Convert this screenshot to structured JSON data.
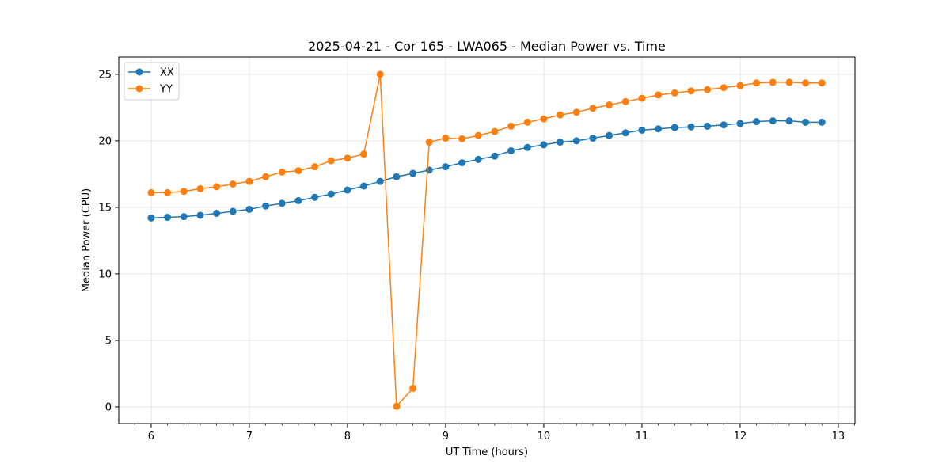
{
  "chart_data": {
    "type": "line",
    "title": "2025-04-21 - Cor 165 - LWA065 - Median Power vs. Time",
    "xlabel": "UT Time (hours)",
    "ylabel": "Median Power (CPU)",
    "xlim": [
      5.67,
      13.17
    ],
    "ylim": [
      -1.25,
      26.3
    ],
    "xticks": [
      6,
      7,
      8,
      9,
      10,
      11,
      12,
      13
    ],
    "yticks": [
      0,
      5,
      10,
      15,
      20,
      25
    ],
    "grid": true,
    "legend_position": "top-left",
    "x": [
      6.0,
      6.1667,
      6.3333,
      6.5,
      6.6667,
      6.8333,
      7.0,
      7.1667,
      7.3333,
      7.5,
      7.6667,
      7.8333,
      8.0,
      8.1667,
      8.3333,
      8.5,
      8.6667,
      8.8333,
      9.0,
      9.1667,
      9.3333,
      9.5,
      9.6667,
      9.8333,
      10.0,
      10.1667,
      10.3333,
      10.5,
      10.6667,
      10.8333,
      11.0,
      11.1667,
      11.3333,
      11.5,
      11.6667,
      11.8333,
      12.0,
      12.1667,
      12.3333,
      12.5,
      12.6667,
      12.8333
    ],
    "series": [
      {
        "name": "XX",
        "color": "#1f77b4",
        "values": [
          14.2,
          14.25,
          14.3,
          14.4,
          14.55,
          14.7,
          14.85,
          15.1,
          15.3,
          15.5,
          15.75,
          16.0,
          16.3,
          16.6,
          16.95,
          17.3,
          17.55,
          17.8,
          18.05,
          18.35,
          18.6,
          18.85,
          19.25,
          19.5,
          19.7,
          19.9,
          20.0,
          20.2,
          20.4,
          20.6,
          20.8,
          20.9,
          21.0,
          21.05,
          21.1,
          21.2,
          21.3,
          21.45,
          21.5,
          21.5,
          21.4,
          21.4
        ]
      },
      {
        "name": "YY",
        "color": "#ff7f0e",
        "values": [
          16.1,
          16.1,
          16.2,
          16.4,
          16.55,
          16.75,
          16.95,
          17.3,
          17.65,
          17.75,
          18.05,
          18.5,
          18.7,
          19.0,
          25.0,
          0.05,
          1.4,
          19.9,
          20.2,
          20.15,
          20.4,
          20.7,
          21.1,
          21.4,
          21.65,
          21.95,
          22.15,
          22.45,
          22.7,
          22.95,
          23.2,
          23.45,
          23.6,
          23.75,
          23.85,
          24.0,
          24.15,
          24.35,
          24.4,
          24.4,
          24.35,
          24.35
        ]
      }
    ]
  }
}
